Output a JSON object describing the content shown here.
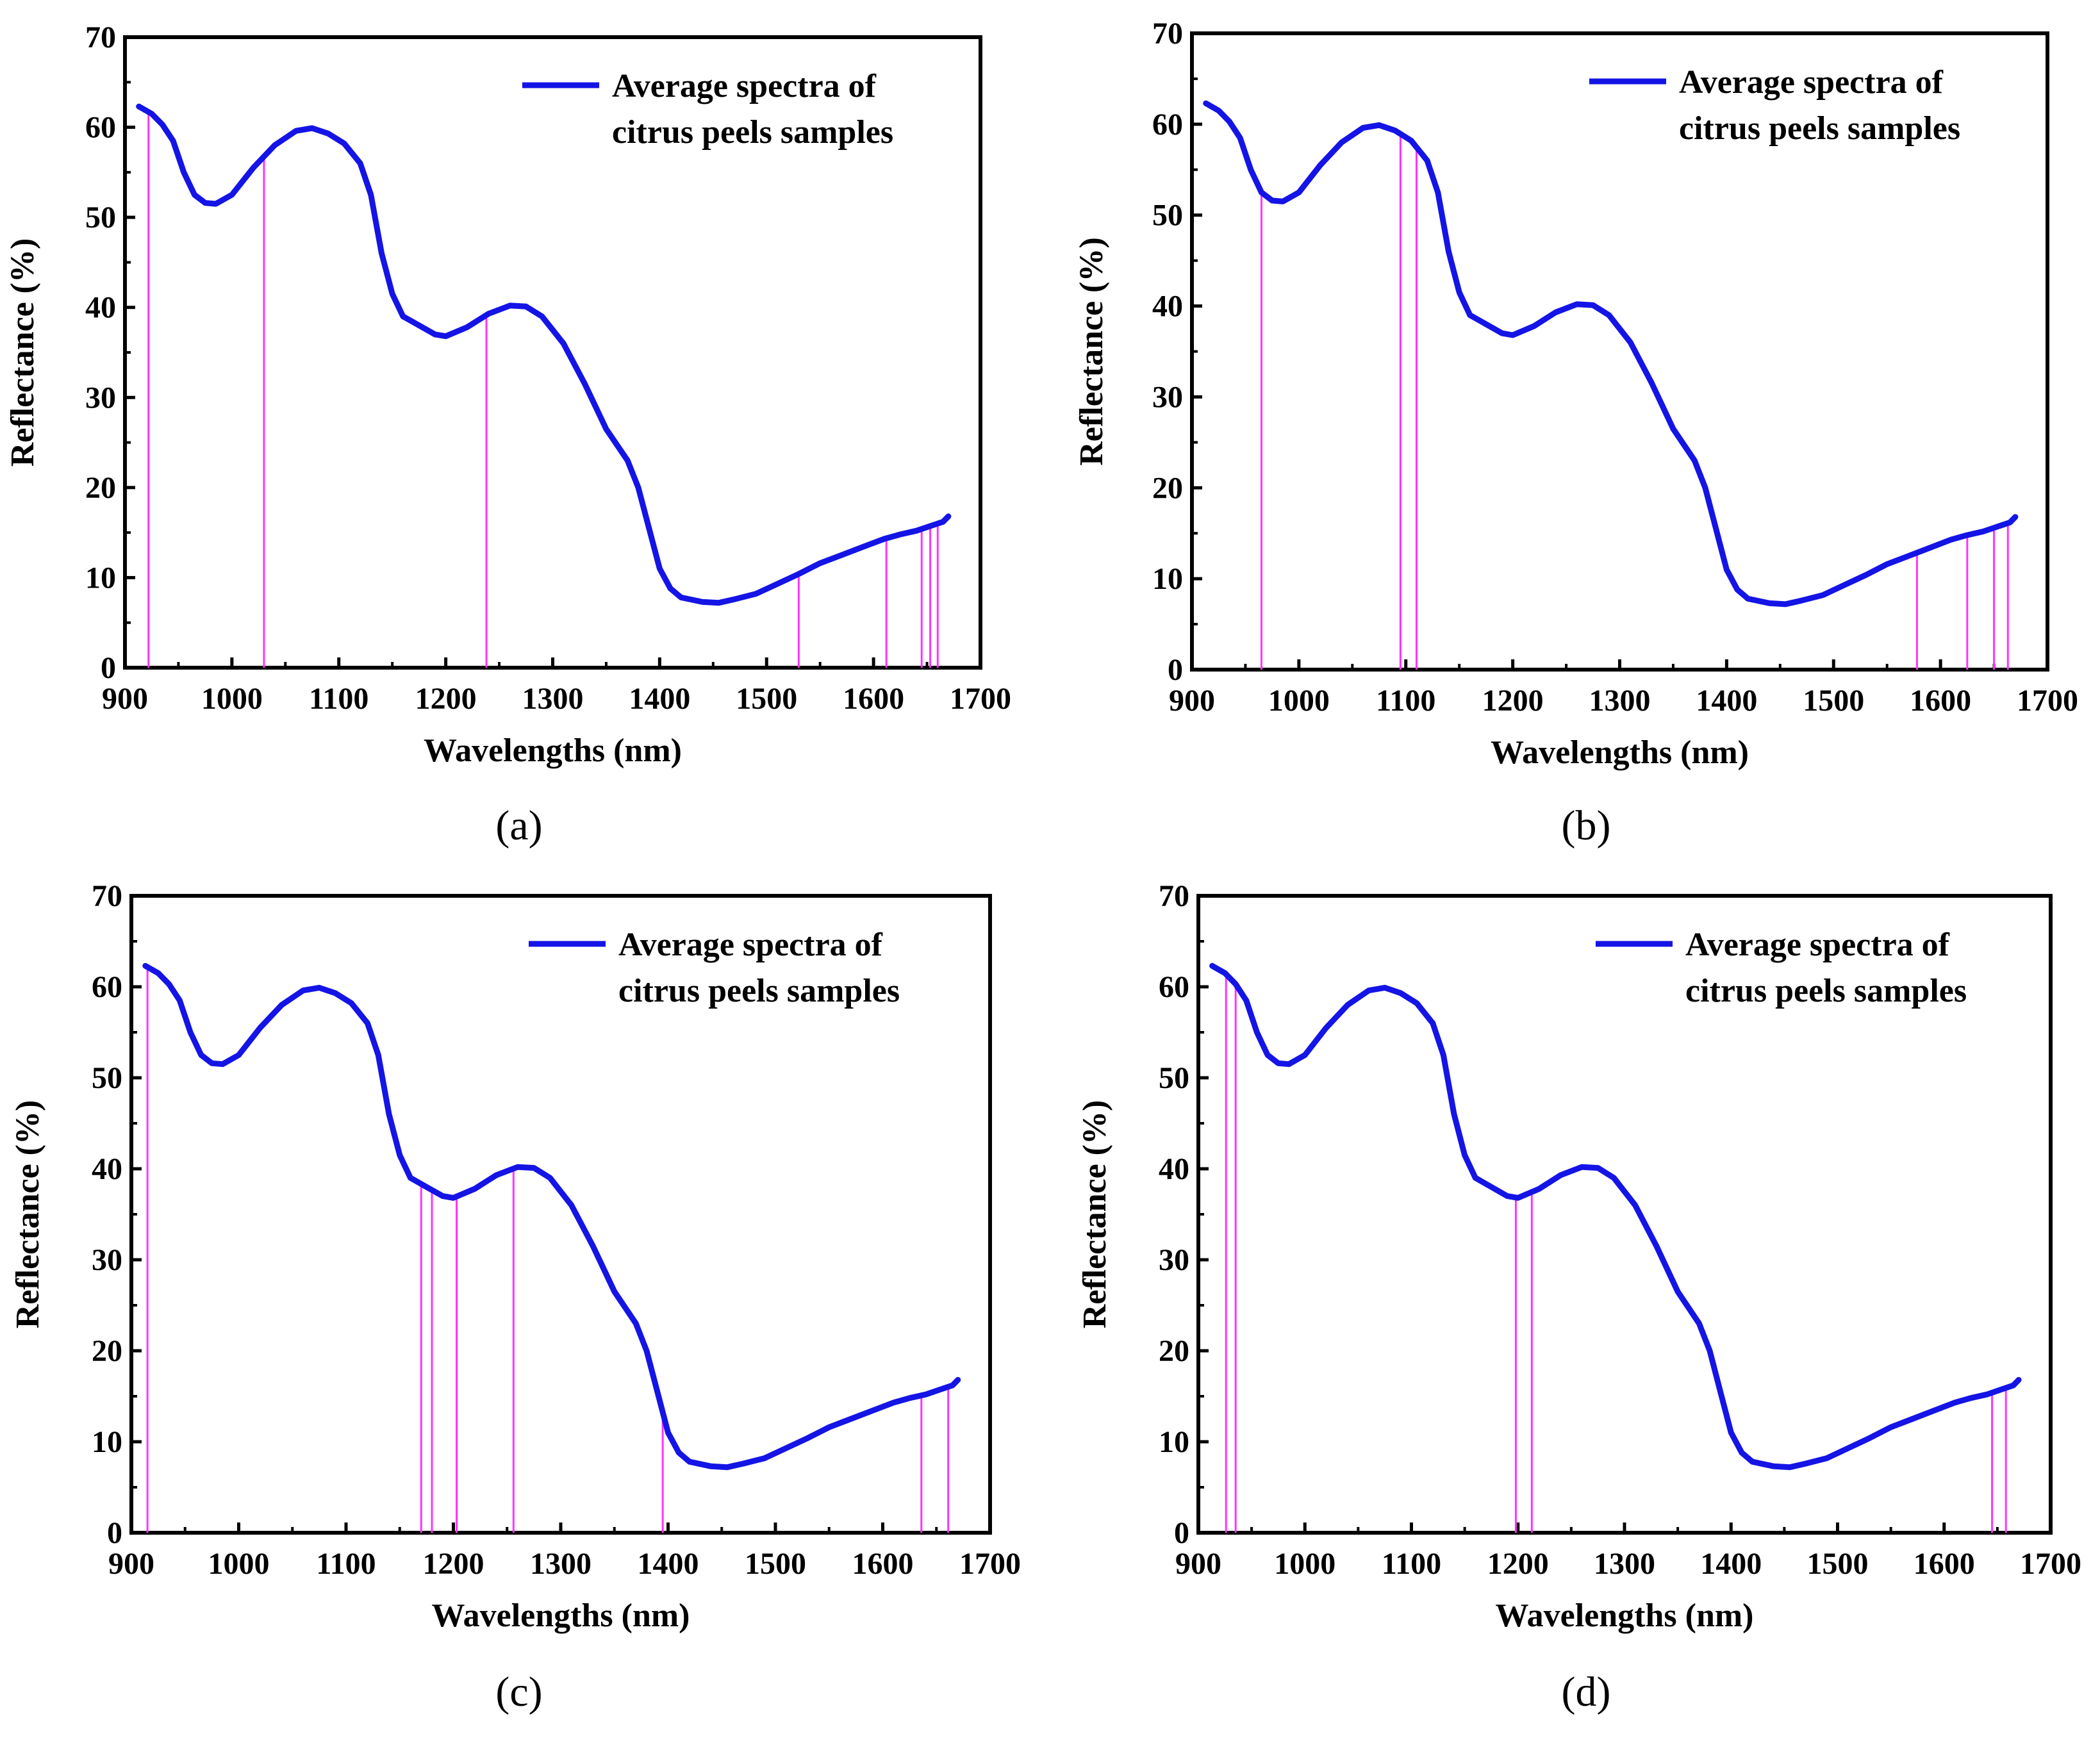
{
  "colors": {
    "curve": "#1414e6",
    "marker": "#ff33ff",
    "axis": "#000000"
  },
  "chart_data": [
    {
      "panel": "(a)",
      "type": "line",
      "xlabel": "Wavelengths (nm)",
      "ylabel": "Reflectance (%)",
      "xlim": [
        900,
        1700
      ],
      "ylim": [
        0,
        70
      ],
      "xticks": [
        900,
        1000,
        1100,
        1200,
        1300,
        1400,
        1500,
        1600,
        1700
      ],
      "yticks": [
        0,
        10,
        20,
        30,
        40,
        50,
        60,
        70
      ],
      "legend": [
        "Average spectra of",
        "citrus peels samples"
      ],
      "series": [
        {
          "name": "Average spectra of citrus peels samples",
          "x": [
            913,
            925,
            935,
            945,
            955,
            965,
            975,
            985,
            1000,
            1020,
            1040,
            1060,
            1075,
            1090,
            1105,
            1120,
            1130,
            1140,
            1150,
            1160,
            1175,
            1190,
            1200,
            1220,
            1240,
            1260,
            1275,
            1290,
            1310,
            1330,
            1350,
            1370,
            1380,
            1390,
            1400,
            1410,
            1420,
            1440,
            1455,
            1470,
            1490,
            1510,
            1530,
            1550,
            1570,
            1590,
            1610,
            1625,
            1640,
            1655,
            1665,
            1670
          ],
          "y": [
            62.3,
            61.5,
            60.3,
            58.5,
            55.0,
            52.5,
            51.6,
            51.5,
            52.5,
            55.5,
            58.0,
            59.6,
            59.9,
            59.3,
            58.2,
            56.0,
            52.5,
            46.0,
            41.5,
            39.0,
            38.0,
            37.0,
            36.8,
            37.8,
            39.3,
            40.2,
            40.1,
            39.0,
            36.0,
            31.5,
            26.5,
            23.0,
            20.0,
            15.5,
            11.0,
            8.8,
            7.8,
            7.3,
            7.2,
            7.6,
            8.2,
            9.3,
            10.4,
            11.6,
            12.5,
            13.4,
            14.3,
            14.8,
            15.2,
            15.8,
            16.2,
            16.8
          ]
        }
      ],
      "selected_wavelengths": [
        922,
        1030,
        1238,
        1530,
        1612,
        1645,
        1653,
        1660
      ]
    },
    {
      "panel": "(b)",
      "type": "line",
      "xlabel": "Wavelengths (nm)",
      "ylabel": "Reflectance (%)",
      "xlim": [
        900,
        1700
      ],
      "ylim": [
        0,
        70
      ],
      "xticks": [
        900,
        1000,
        1100,
        1200,
        1300,
        1400,
        1500,
        1600,
        1700
      ],
      "yticks": [
        0,
        10,
        20,
        30,
        40,
        50,
        60,
        70
      ],
      "legend": [
        "Average spectra of",
        "citrus peels samples"
      ],
      "series": [
        {
          "name": "Average spectra of citrus peels samples",
          "x": [
            913,
            925,
            935,
            945,
            955,
            965,
            975,
            985,
            1000,
            1020,
            1040,
            1060,
            1075,
            1090,
            1105,
            1120,
            1130,
            1140,
            1150,
            1160,
            1175,
            1190,
            1200,
            1220,
            1240,
            1260,
            1275,
            1290,
            1310,
            1330,
            1350,
            1370,
            1380,
            1390,
            1400,
            1410,
            1420,
            1440,
            1455,
            1470,
            1490,
            1510,
            1530,
            1550,
            1570,
            1590,
            1610,
            1625,
            1640,
            1655,
            1665,
            1670
          ],
          "y": [
            62.3,
            61.5,
            60.3,
            58.5,
            55.0,
            52.5,
            51.6,
            51.5,
            52.5,
            55.5,
            58.0,
            59.6,
            59.9,
            59.3,
            58.2,
            56.0,
            52.5,
            46.0,
            41.5,
            39.0,
            38.0,
            37.0,
            36.8,
            37.8,
            39.3,
            40.2,
            40.1,
            39.0,
            36.0,
            31.5,
            26.5,
            23.0,
            20.0,
            15.5,
            11.0,
            8.8,
            7.8,
            7.3,
            7.2,
            7.6,
            8.2,
            9.3,
            10.4,
            11.6,
            12.5,
            13.4,
            14.3,
            14.8,
            15.2,
            15.8,
            16.2,
            16.8
          ]
        }
      ],
      "selected_wavelengths": [
        965,
        1095,
        1110,
        1578,
        1625,
        1650,
        1663
      ]
    },
    {
      "panel": "(c)",
      "type": "line",
      "xlabel": "Wavelengths (nm)",
      "ylabel": "Reflectance (%)",
      "xlim": [
        900,
        1700
      ],
      "ylim": [
        0,
        70
      ],
      "xticks": [
        900,
        1000,
        1100,
        1200,
        1300,
        1400,
        1500,
        1600,
        1700
      ],
      "yticks": [
        0,
        10,
        20,
        30,
        40,
        50,
        60,
        70
      ],
      "legend": [
        "Average spectra of",
        "citrus peels samples"
      ],
      "series": [
        {
          "name": "Average spectra of citrus peels samples",
          "x": [
            913,
            925,
            935,
            945,
            955,
            965,
            975,
            985,
            1000,
            1020,
            1040,
            1060,
            1075,
            1090,
            1105,
            1120,
            1130,
            1140,
            1150,
            1160,
            1175,
            1190,
            1200,
            1220,
            1240,
            1260,
            1275,
            1290,
            1310,
            1330,
            1350,
            1370,
            1380,
            1390,
            1400,
            1410,
            1420,
            1440,
            1455,
            1470,
            1490,
            1510,
            1530,
            1550,
            1570,
            1590,
            1610,
            1625,
            1640,
            1655,
            1665,
            1670
          ],
          "y": [
            62.3,
            61.5,
            60.3,
            58.5,
            55.0,
            52.5,
            51.6,
            51.5,
            52.5,
            55.5,
            58.0,
            59.6,
            59.9,
            59.3,
            58.2,
            56.0,
            52.5,
            46.0,
            41.5,
            39.0,
            38.0,
            37.0,
            36.8,
            37.8,
            39.3,
            40.2,
            40.1,
            39.0,
            36.0,
            31.5,
            26.5,
            23.0,
            20.0,
            15.5,
            11.0,
            8.8,
            7.8,
            7.3,
            7.2,
            7.6,
            8.2,
            9.3,
            10.4,
            11.6,
            12.5,
            13.4,
            14.3,
            14.8,
            15.2,
            15.8,
            16.2,
            16.8
          ]
        }
      ],
      "selected_wavelengths": [
        915,
        1170,
        1180,
        1203,
        1256,
        1395,
        1636,
        1661
      ]
    },
    {
      "panel": "(d)",
      "type": "line",
      "xlabel": "Wavelengths (nm)",
      "ylabel": "Reflectance (%)",
      "xlim": [
        900,
        1700
      ],
      "ylim": [
        0,
        70
      ],
      "xticks": [
        900,
        1000,
        1100,
        1200,
        1300,
        1400,
        1500,
        1600,
        1700
      ],
      "yticks": [
        0,
        10,
        20,
        30,
        40,
        50,
        60,
        70
      ],
      "legend": [
        "Average spectra of",
        "citrus peels samples"
      ],
      "series": [
        {
          "name": "Average spectra of citrus peels samples",
          "x": [
            913,
            925,
            935,
            945,
            955,
            965,
            975,
            985,
            1000,
            1020,
            1040,
            1060,
            1075,
            1090,
            1105,
            1120,
            1130,
            1140,
            1150,
            1160,
            1175,
            1190,
            1200,
            1220,
            1240,
            1260,
            1275,
            1290,
            1310,
            1330,
            1350,
            1370,
            1380,
            1390,
            1400,
            1410,
            1420,
            1440,
            1455,
            1470,
            1490,
            1510,
            1530,
            1550,
            1570,
            1590,
            1610,
            1625,
            1640,
            1655,
            1665,
            1670
          ],
          "y": [
            62.3,
            61.5,
            60.3,
            58.5,
            55.0,
            52.5,
            51.6,
            51.5,
            52.5,
            55.5,
            58.0,
            59.6,
            59.9,
            59.3,
            58.2,
            56.0,
            52.5,
            46.0,
            41.5,
            39.0,
            38.0,
            37.0,
            36.8,
            37.8,
            39.3,
            40.2,
            40.1,
            39.0,
            36.0,
            31.5,
            26.5,
            23.0,
            20.0,
            15.5,
            11.0,
            8.8,
            7.8,
            7.3,
            7.2,
            7.6,
            8.2,
            9.3,
            10.4,
            11.6,
            12.5,
            13.4,
            14.3,
            14.8,
            15.2,
            15.8,
            16.2,
            16.8
          ]
        }
      ],
      "selected_wavelengths": [
        926,
        935,
        1198,
        1213,
        1645,
        1658
      ]
    }
  ]
}
